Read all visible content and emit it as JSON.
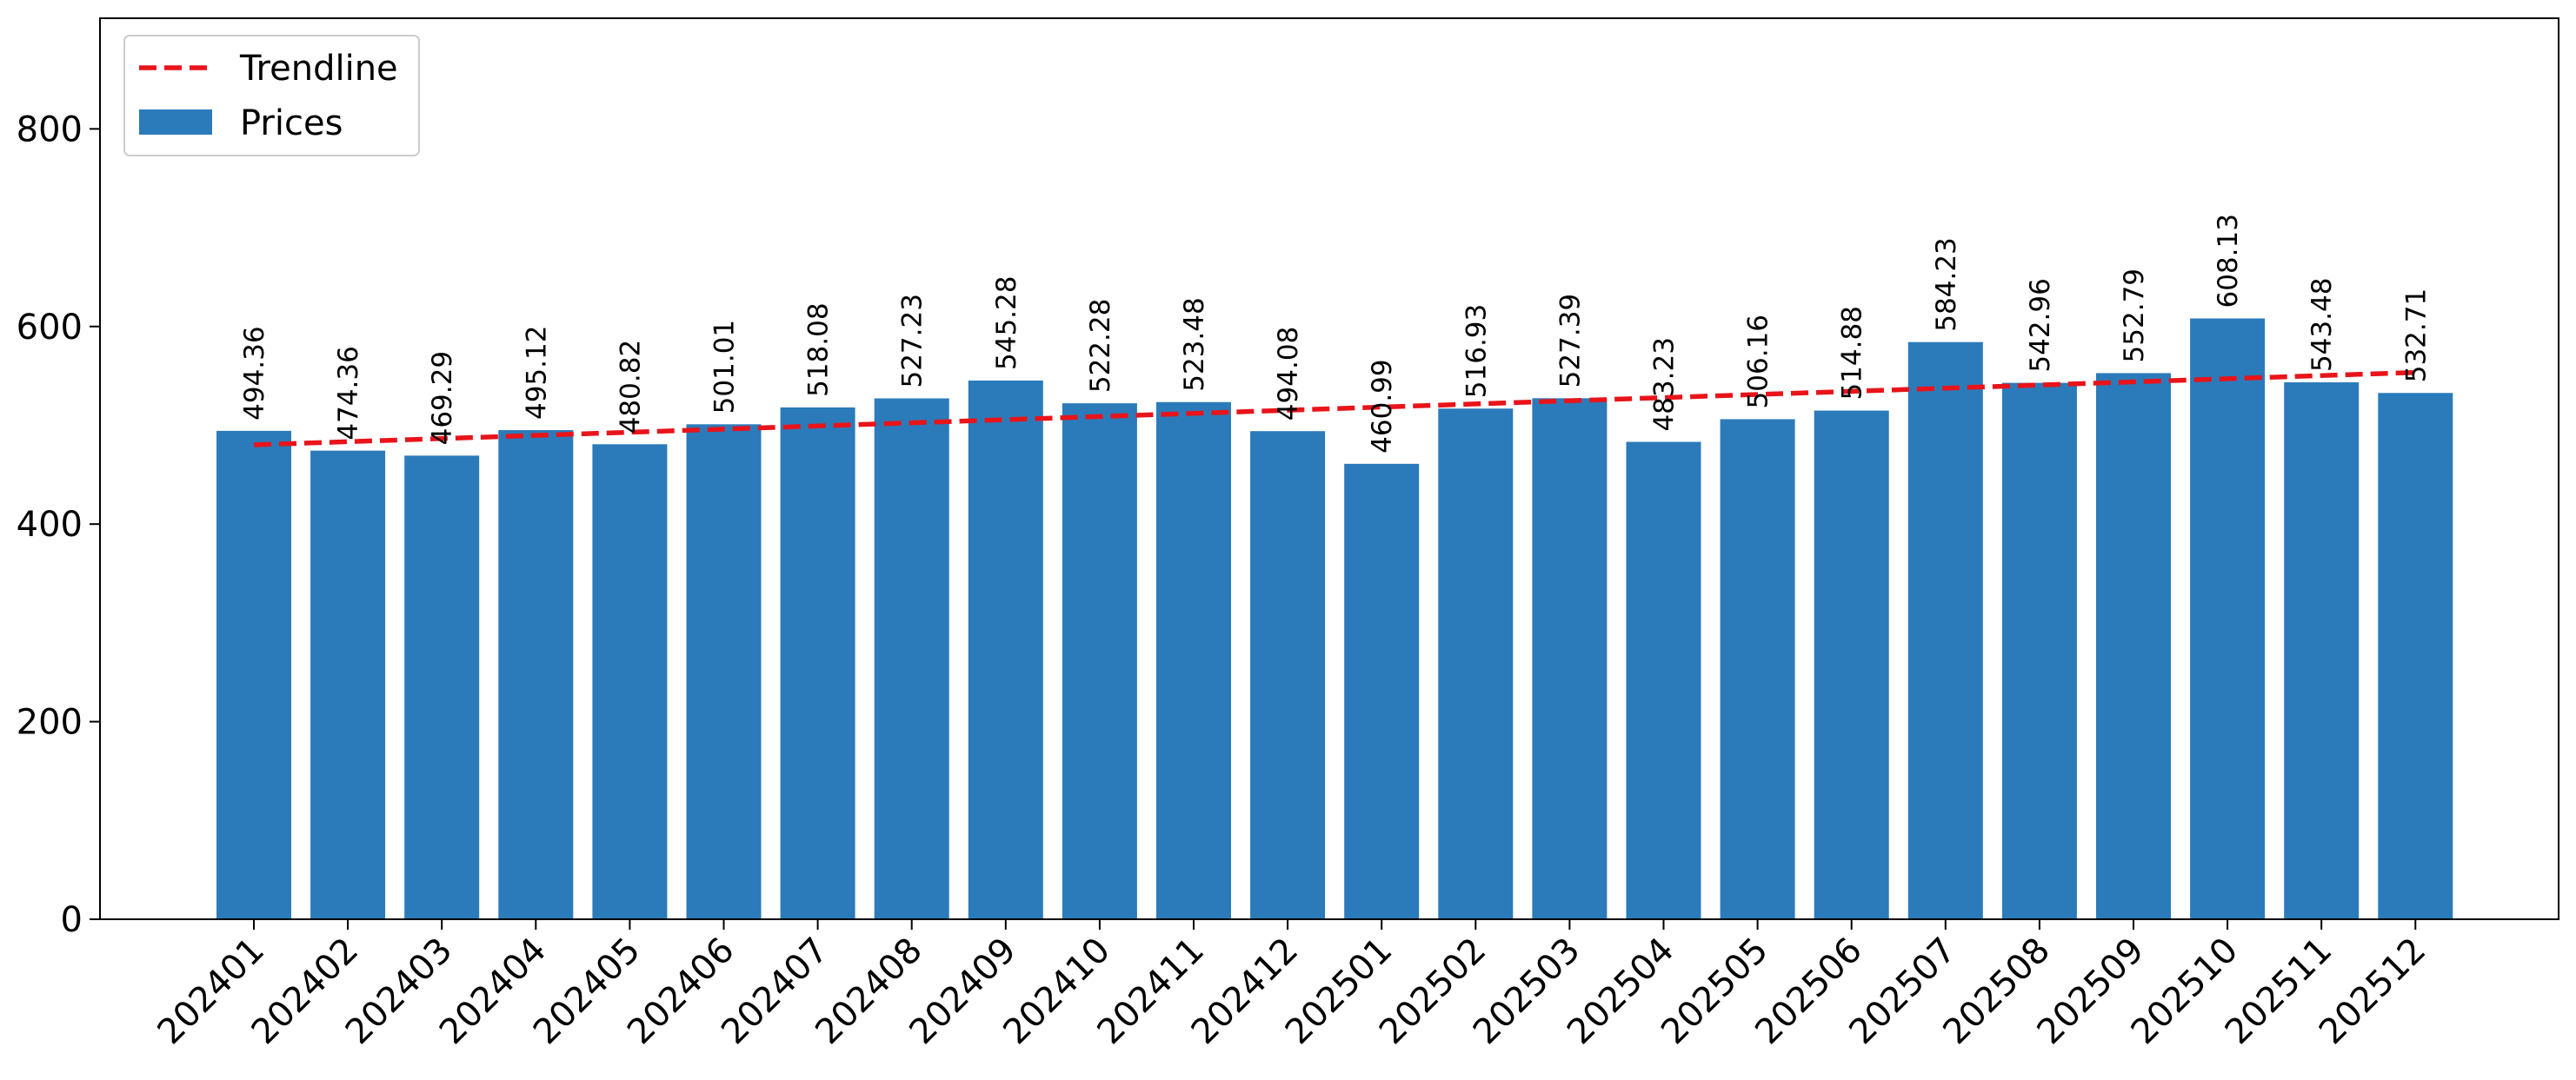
{
  "chart_data": {
    "type": "bar",
    "categories": [
      "202401",
      "202402",
      "202403",
      "202404",
      "202405",
      "202406",
      "202407",
      "202408",
      "202409",
      "202410",
      "202411",
      "202412",
      "202501",
      "202502",
      "202503",
      "202504",
      "202505",
      "202506",
      "202507",
      "202508",
      "202509",
      "202510",
      "202511",
      "202512"
    ],
    "series": [
      {
        "name": "Prices",
        "type": "bar",
        "color": "#2b7bba",
        "values": [
          494.36,
          474.36,
          469.29,
          495.12,
          480.82,
          501.01,
          518.08,
          527.23,
          545.28,
          522.28,
          523.48,
          494.08,
          460.99,
          516.93,
          527.39,
          483.23,
          506.16,
          514.88,
          584.23,
          542.96,
          552.79,
          608.13,
          543.48,
          532.71
        ]
      },
      {
        "name": "Trendline",
        "type": "line",
        "style": "dashed",
        "color": "#e8141a",
        "start": 480.2,
        "end": 553.5
      }
    ],
    "data_labels": [
      "494.36",
      "474.36",
      "469.29",
      "495.12",
      "480.82",
      "501.01",
      "518.08",
      "527.23",
      "545.28",
      "522.28",
      "523.48",
      "494.08",
      "460.99",
      "516.93",
      "527.39",
      "483.23",
      "506.16",
      "514.88",
      "584.23",
      "542.96",
      "552.79",
      "608.13",
      "543.48",
      "532.71"
    ],
    "y_ticks": [
      "0",
      "200",
      "400",
      "600",
      "800"
    ],
    "ylim": [
      0,
      912
    ],
    "title": "",
    "xlabel": "",
    "ylabel": "",
    "grid": false,
    "legend_position": "top-left",
    "legend": [
      "Trendline",
      "Prices"
    ]
  }
}
